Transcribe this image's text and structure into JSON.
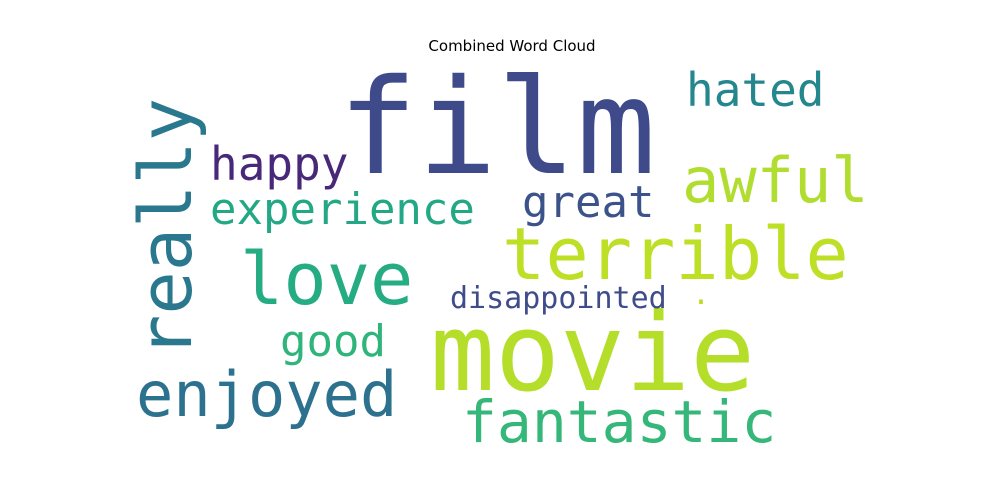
{
  "title": "Combined Word Cloud",
  "words": {
    "film": {
      "text": "film",
      "color": "#3e4a89"
    },
    "movie": {
      "text": "movie",
      "color": "#b5de2b"
    },
    "really": {
      "text": "really",
      "color": "#2a788e"
    },
    "terrible": {
      "text": "terrible",
      "color": "#bddf26"
    },
    "love": {
      "text": "love",
      "color": "#25ac82"
    },
    "awful": {
      "text": "awful",
      "color": "#b0dd2f"
    },
    "enjoyed": {
      "text": "enjoyed",
      "color": "#2c728e"
    },
    "fantastic": {
      "text": "fantastic",
      "color": "#35b779"
    },
    "happy": {
      "text": "happy",
      "color": "#482878"
    },
    "experience": {
      "text": "experience",
      "color": "#22a884"
    },
    "hated": {
      "text": "hated",
      "color": "#24878e"
    },
    "great": {
      "text": "great",
      "color": "#3b528b"
    },
    "good": {
      "text": "good",
      "color": "#2fb47c"
    },
    "disappointed": {
      "text": "disappointed",
      "color": "#3e4c8a"
    },
    "dot": {
      "text": ".",
      "color": "#b8de29"
    }
  }
}
